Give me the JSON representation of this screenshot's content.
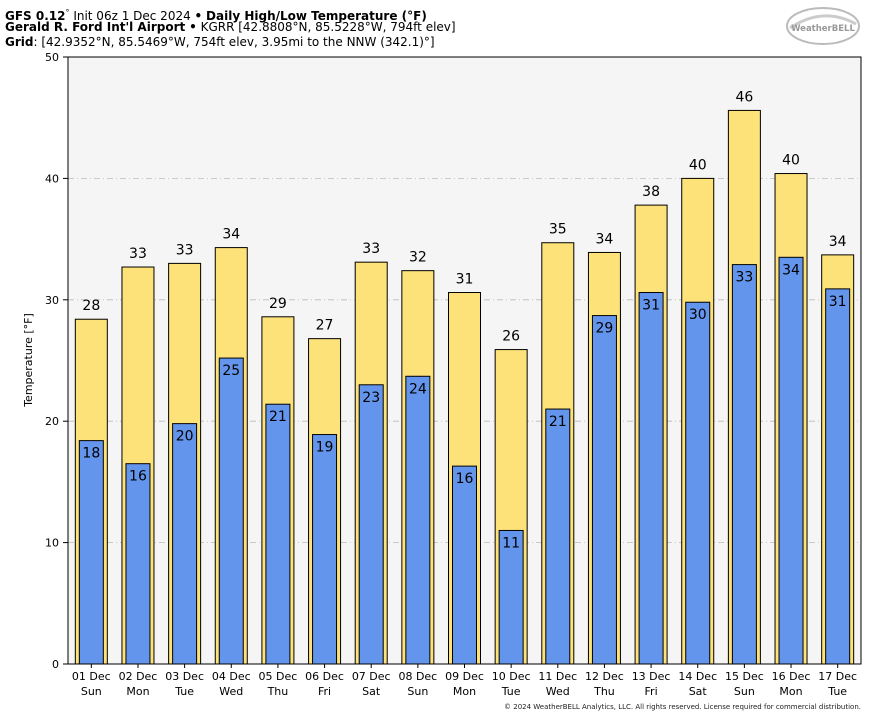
{
  "header": {
    "model": "GFS 0.12",
    "model_deg": "°",
    "init": "Init 06z 1 Dec 2024",
    "bullet": "•",
    "product": "Daily High/Low Temperature (°F)",
    "station_name": "Gerald R. Ford Int'l Airport",
    "station_info": "KGRR [42.8808°N, 85.5228°W, 794ft elev]",
    "grid_label": "Grid",
    "grid_info": "[42.9352°N, 85.5469°W, 754ft elev, 3.95mi to the NNW (342.1)°]"
  },
  "logo": {
    "text": "WeatherBELL",
    "icon": "weatherbell-logo"
  },
  "copyright": "© 2024 WeatherBELL Analytics, LLC. All rights reserved. License required for commercial distribution.",
  "chart_data": {
    "type": "bar",
    "title": "Daily High/Low Temperature (°F)",
    "xlabel": "",
    "ylabel": "Temperature [°F]",
    "ylim": [
      0,
      50
    ],
    "yticks": [
      0,
      10,
      20,
      30,
      40,
      50
    ],
    "grid": true,
    "colors": {
      "high": "#fde27a",
      "low": "#6495ed",
      "plot_bg": "#f5f5f5"
    },
    "categories": [
      [
        "01 Dec",
        "Sun"
      ],
      [
        "02 Dec",
        "Mon"
      ],
      [
        "03 Dec",
        "Tue"
      ],
      [
        "04 Dec",
        "Wed"
      ],
      [
        "05 Dec",
        "Thu"
      ],
      [
        "06 Dec",
        "Fri"
      ],
      [
        "07 Dec",
        "Sat"
      ],
      [
        "08 Dec",
        "Sun"
      ],
      [
        "09 Dec",
        "Mon"
      ],
      [
        "10 Dec",
        "Tue"
      ],
      [
        "11 Dec",
        "Wed"
      ],
      [
        "12 Dec",
        "Thu"
      ],
      [
        "13 Dec",
        "Fri"
      ],
      [
        "14 Dec",
        "Sat"
      ],
      [
        "15 Dec",
        "Sun"
      ],
      [
        "16 Dec",
        "Mon"
      ],
      [
        "17 Dec",
        "Tue"
      ]
    ],
    "series": [
      {
        "key": "high",
        "values": [
          28.4,
          32.7,
          33.0,
          34.3,
          28.6,
          26.8,
          33.1,
          32.4,
          30.6,
          25.9,
          34.7,
          33.9,
          37.8,
          40.0,
          45.6,
          40.4,
          33.7
        ],
        "labels": [
          "28",
          "33",
          "33",
          "34",
          "29",
          "27",
          "33",
          "32",
          "31",
          "26",
          "35",
          "34",
          "38",
          "40",
          "46",
          "40",
          "34"
        ]
      },
      {
        "key": "low",
        "values": [
          18.4,
          16.5,
          19.8,
          25.2,
          21.4,
          18.9,
          23.0,
          23.7,
          16.3,
          11.0,
          21.0,
          28.7,
          30.6,
          29.8,
          32.9,
          33.5,
          30.9
        ],
        "labels": [
          "18",
          "16",
          "20",
          "25",
          "21",
          "19",
          "23",
          "24",
          "16",
          "11",
          "21",
          "29",
          "31",
          "30",
          "33",
          "34",
          "31"
        ]
      }
    ]
  }
}
